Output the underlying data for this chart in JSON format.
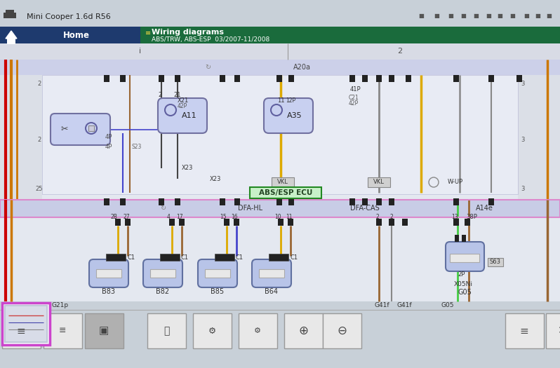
{
  "bg_color": "#c8d0d8",
  "nav_left_color": "#1e3a6e",
  "nav_right_color": "#1a6b3c",
  "diagram_bg": "#e8eaf0",
  "header_row_bg": "#e0e2e8",
  "bus_top_color": "#c8cce8",
  "bus_mid_color": "#c8cce8",
  "component_fill": "#c8d0f0",
  "component_border": "#7070a0",
  "connector_fill": "#b8c4e8",
  "connector_border": "#6070a0",
  "left_stripe_red": "#cc0000",
  "left_stripe_orange": "#cc7700",
  "wire_yellow": "#ddaa00",
  "wire_gray": "#888888",
  "wire_blue": "#4444cc",
  "wire_brown": "#996633",
  "wire_green_bright": "#44cc44",
  "wire_black": "#222222",
  "abs_box_fill": "#c8f0c8",
  "abs_box_border": "#228822",
  "label_color": "#333333",
  "toolbar_bg": "#c8d0d8",
  "btn_normal": "#e8e8e8",
  "btn_active": "#b0b0b0",
  "thumbnail_border": "#cc44cc",
  "title_text": "Mini Cooper 1.6d R56",
  "nav_home": "Home",
  "nav_wiring": "Wiring diagrams",
  "nav_sub": "ABS/TRW, ABS-ESP  03/2007-11/2008",
  "page1_label": "i",
  "page2_label": "2",
  "a20a_label": "A20a",
  "abs_label": "ABS/ESP ECU",
  "dfa_hl": "DFA-HL",
  "dfa_cas": "DFA-CAS",
  "a14e_label": "A14e",
  "g21p": "G21p",
  "g41f1": "G41f",
  "g41f2": "G41f",
  "g05": "G05",
  "connectors_lower": [
    "B83",
    "B82",
    "B85",
    "B64"
  ],
  "g05_lower": "G05"
}
